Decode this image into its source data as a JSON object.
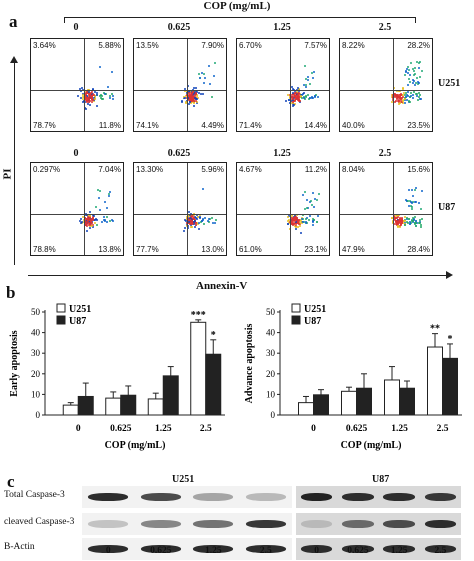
{
  "header": {
    "cop_label": "COP (mg/mL)",
    "panel_a": "a",
    "panel_b": "b",
    "panel_c": "c"
  },
  "flow": {
    "concentrations": [
      "0",
      "0.625",
      "1.25",
      "2.5"
    ],
    "y_axis": "PI",
    "x_axis": "Annexin-V",
    "rows": [
      {
        "cell": "U251",
        "plots": [
          {
            "ul": "3.64%",
            "ur": "5.88%",
            "ll": "78.7%",
            "lr": "11.8%"
          },
          {
            "ul": "13.5%",
            "ur": "7.90%",
            "ll": "74.1%",
            "lr": "4.49%"
          },
          {
            "ul": "6.70%",
            "ur": "7.57%",
            "ll": "71.4%",
            "lr": "14.4%"
          },
          {
            "ul": "8.22%",
            "ur": "28.2%",
            "ll": "40.0%",
            "lr": "23.5%"
          }
        ]
      },
      {
        "cell": "U87",
        "plots": [
          {
            "ul": "0.297%",
            "ur": "7.04%",
            "ll": "78.8%",
            "lr": "13.8%"
          },
          {
            "ul": "13.30%",
            "ur": "5.96%",
            "ll": "77.7%",
            "lr": "13.0%"
          },
          {
            "ul": "4.67%",
            "ur": "11.2%",
            "ll": "61.0%",
            "lr": "23.1%"
          },
          {
            "ul": "8.04%",
            "ur": "15.6%",
            "ll": "47.9%",
            "lr": "28.4%"
          }
        ]
      }
    ]
  },
  "chart_data": [
    {
      "type": "bar",
      "categories": [
        "0",
        "0.625",
        "1.25",
        "2.5"
      ],
      "ylabel": "Early apoptosis",
      "xlabel": "COP   (mg/mL)",
      "ylim": [
        0,
        50
      ],
      "yticks": [
        0,
        10,
        20,
        30,
        40,
        50
      ],
      "legend": "top-left",
      "series": [
        {
          "name": "U251",
          "color": "#ffffff",
          "values": [
            4.8,
            8.2,
            7.8,
            45.0
          ],
          "errors": [
            1.2,
            3.0,
            2.8,
            1.2
          ]
        },
        {
          "name": "U87",
          "color": "#222222",
          "values": [
            9.0,
            9.6,
            19.0,
            29.5
          ],
          "errors": [
            6.5,
            4.5,
            4.5,
            7.0
          ]
        }
      ],
      "annotations": [
        {
          "category": "2.5",
          "series": "U251",
          "text": "***"
        },
        {
          "category": "2.5",
          "series": "U87",
          "text": "*"
        }
      ]
    },
    {
      "type": "bar",
      "categories": [
        "0",
        "0.625",
        "1.25",
        "2.5"
      ],
      "ylabel": "Advance apoptosis",
      "xlabel": "COP   (mg/mL)",
      "ylim": [
        0,
        50
      ],
      "yticks": [
        0,
        10,
        20,
        30,
        40,
        50
      ],
      "legend": "top-left",
      "series": [
        {
          "name": "U251",
          "color": "#ffffff",
          "values": [
            6.0,
            11.5,
            17.0,
            33.0
          ],
          "errors": [
            3.0,
            2.0,
            6.5,
            6.5
          ]
        },
        {
          "name": "U87",
          "color": "#222222",
          "values": [
            9.8,
            13.0,
            13.0,
            27.5
          ],
          "errors": [
            2.5,
            7.0,
            3.5,
            7.0
          ]
        }
      ],
      "annotations": [
        {
          "category": "2.5",
          "series": "U251",
          "text": "**"
        },
        {
          "category": "2.5",
          "series": "U87",
          "text": "*"
        }
      ]
    }
  ],
  "blot": {
    "groups": [
      "U251",
      "U87"
    ],
    "rows": [
      "Total Caspase-3",
      "cleaved Caspase-3",
      "B-Actin"
    ],
    "lanes": [
      "0",
      "0.625",
      "1.25",
      "2.5",
      "0",
      "0.625",
      "1.25",
      "2.5"
    ],
    "intensity": {
      "Total Caspase-3": [
        0.9,
        0.75,
        0.3,
        0.2,
        0.95,
        0.9,
        0.9,
        0.85
      ],
      "cleaved Caspase-3": [
        0.15,
        0.45,
        0.55,
        0.85,
        0.2,
        0.6,
        0.75,
        0.9
      ],
      "B-Actin": [
        0.9,
        0.9,
        0.9,
        0.9,
        0.9,
        0.9,
        0.9,
        0.9
      ]
    }
  }
}
